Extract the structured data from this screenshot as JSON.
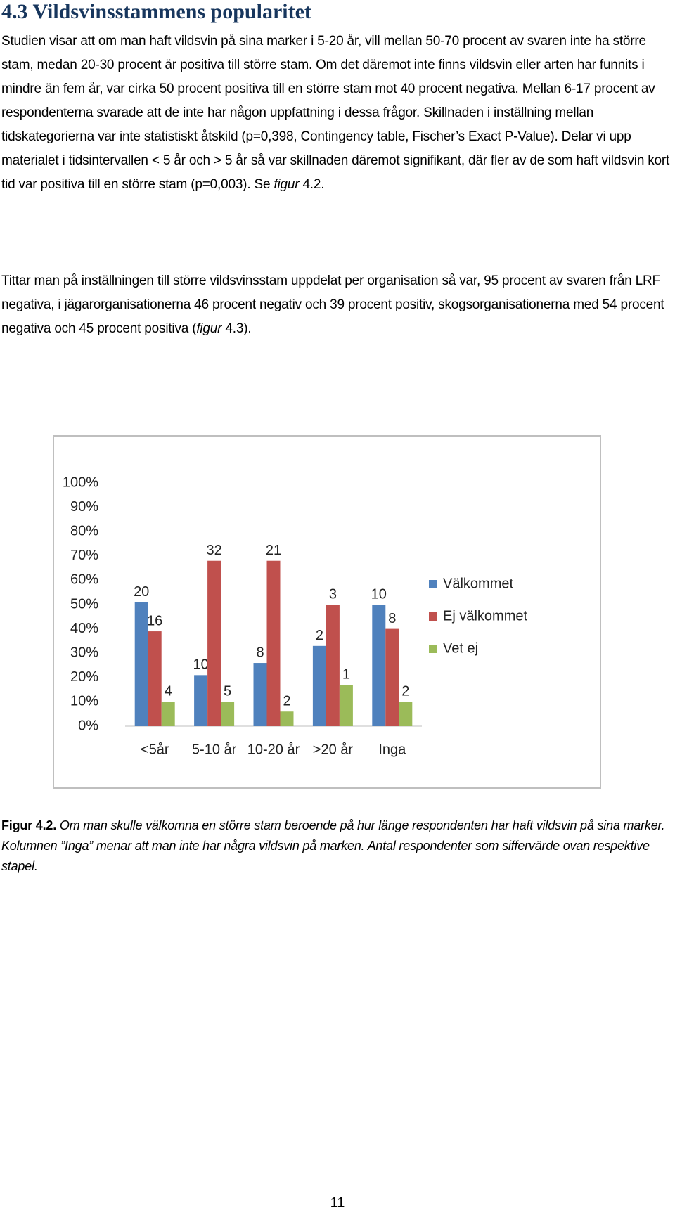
{
  "heading": "4.3 Vildsvinsstammens popularitet",
  "paragraphs": [
    [
      "Studien visar att om man haft vildsvin på sina marker i 5-20 år, vill mellan 50-70 procent av svaren inte ha större stam, medan 20-30 procent är positiva till större stam. Om det däremot inte finns vildsvin eller arten har funnits i mindre än fem år, var cirka 50 procent positiva till en större stam mot 40 procent negativa. Mellan 6-17 procent av respondenterna svarade att de inte har någon uppfattning i dessa frågor. Skillnaden i inställning mellan tidskategorierna var inte statistiskt åtskild (p=0,398, Contingency table, Fischer’s Exact P-Value). Delar vi upp materialet i tidsintervallen < 5 år och > 5 år så var skillnaden däremot signifikant, där fler av de som haft vildsvin kort tid var positiva till en större stam (p=0,003). Se ",
      "figur",
      " 4.2."
    ],
    [
      "Tittar man på inställningen till större vildsvinsstam uppdelat per organisation så var, 95 procent av svaren från LRF negativa, i jägarorganisationerna 46 procent negativ och 39 procent positiv, skogsorganisationerna med 54 procent negativa och 45 procent positiva (",
      "figur",
      " 4.3)."
    ]
  ],
  "chart_data": {
    "type": "bar",
    "categories": [
      "<5år",
      "5-10 år",
      "10-20 år",
      ">20 år",
      "Inga"
    ],
    "series": [
      {
        "name": "Välkommet",
        "color": "#4f81bd",
        "values": [
          51,
          21,
          26,
          33,
          50
        ],
        "counts": [
          20,
          10,
          8,
          2,
          10
        ]
      },
      {
        "name": "Ej välkommet",
        "color": "#c0504d",
        "values": [
          39,
          68,
          68,
          50,
          40
        ],
        "counts": [
          16,
          32,
          21,
          3,
          8
        ]
      },
      {
        "name": "Vet ej",
        "color": "#9bbb59",
        "values": [
          10,
          10,
          6,
          17,
          10
        ],
        "counts": [
          4,
          5,
          2,
          1,
          2
        ]
      }
    ],
    "ylim": [
      0,
      100
    ],
    "yticks": [
      {
        "value": 0,
        "label": "0%"
      },
      {
        "value": 10,
        "label": "10%"
      },
      {
        "value": 20,
        "label": "20%"
      },
      {
        "value": 30,
        "label": "30%"
      },
      {
        "value": 40,
        "label": "40%"
      },
      {
        "value": 50,
        "label": "50%"
      },
      {
        "value": 60,
        "label": "60%"
      },
      {
        "value": 70,
        "label": "70%"
      },
      {
        "value": 80,
        "label": "80%"
      },
      {
        "value": 90,
        "label": "90%"
      },
      {
        "value": 100,
        "label": "100%"
      }
    ],
    "grid": false,
    "legend": "right"
  },
  "caption": [
    "Figur 4.2.",
    " Om man skulle välkomna en större stam beroende på hur länge respondenten har haft vildsvin på sina marker. Kolumnen ”Inga” menar att man inte har några vildsvin på marken. Antal respondenter som siffervärde ovan respektive stapel."
  ],
  "page_number": "11"
}
